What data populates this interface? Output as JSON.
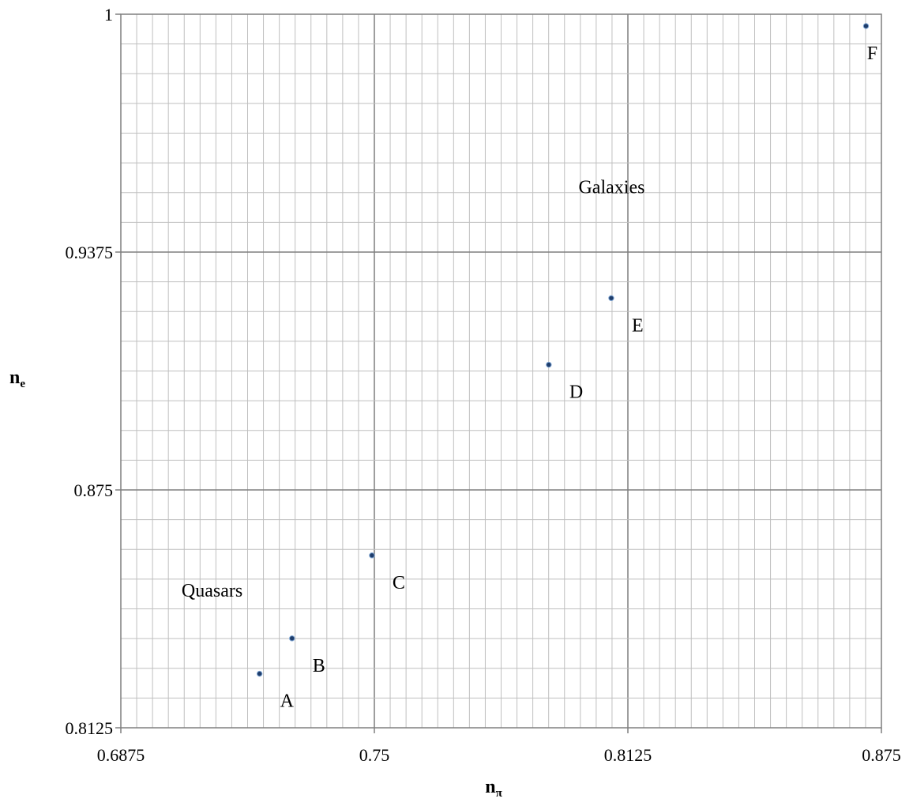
{
  "chart_data": {
    "type": "scatter",
    "title": "",
    "xlabel": {
      "main": "n",
      "sub": "π"
    },
    "ylabel": {
      "main": "n",
      "sub": "e"
    },
    "xlim": [
      0.6875,
      0.875
    ],
    "ylim": [
      0.8125,
      1
    ],
    "x_ticks": [
      "0.6875",
      "0.75",
      "0.8125",
      "0.875"
    ],
    "y_ticks": [
      "0.8125",
      "0.875",
      "0.9375",
      "1"
    ],
    "x_major_step": 0.0625,
    "y_major_step": 0.0625,
    "x_minor_step": 0.00390625,
    "y_minor_step": 0.0078125,
    "grid": true,
    "point_color": "#1f3d6b",
    "points": [
      {
        "label": "A",
        "x": 0.7217,
        "y": 0.8267
      },
      {
        "label": "B",
        "x": 0.7297,
        "y": 0.836
      },
      {
        "label": "C",
        "x": 0.7494,
        "y": 0.8578
      },
      {
        "label": "D",
        "x": 0.793,
        "y": 0.9079
      },
      {
        "label": "E",
        "x": 0.8084,
        "y": 0.9254
      },
      {
        "label": "F",
        "x": 0.8712,
        "y": 0.9969
      }
    ],
    "annotations": [
      {
        "text": "Quasars",
        "x": 0.71,
        "y": 0.847
      },
      {
        "text": "Galaxies",
        "x": 0.8085,
        "y": 0.953
      }
    ]
  }
}
